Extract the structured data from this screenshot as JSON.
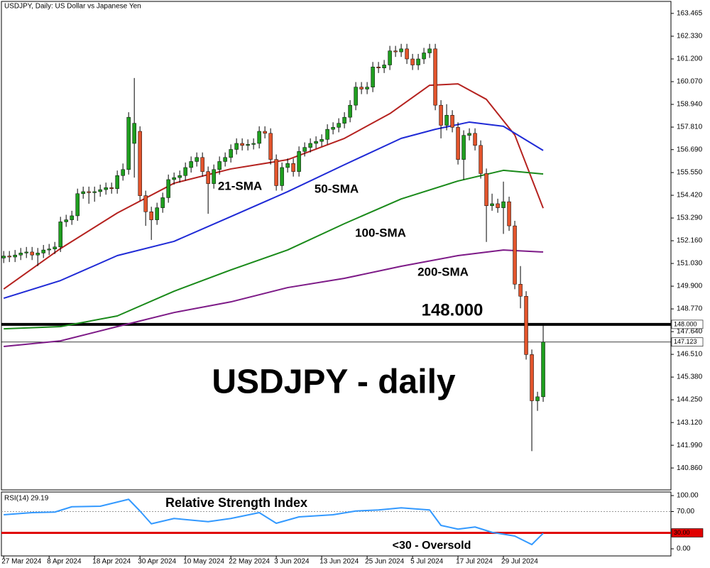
{
  "chart_data": [
    {
      "type": "candlestick",
      "title": "USDJPY, Daily:  US Dollar vs Japanese Yen",
      "categories": [
        "27 Mar 2024",
        null,
        null,
        null,
        null,
        null,
        null,
        null,
        "8 Apr 2024",
        null,
        null,
        null,
        null,
        null,
        null,
        null,
        "18 Apr 2024",
        null,
        null,
        null,
        null,
        null,
        null,
        null,
        "30 Apr 2024",
        null,
        null,
        null,
        null,
        null,
        null,
        null,
        "10 May 2024",
        null,
        null,
        null,
        null,
        null,
        null,
        null,
        "22 May 2024",
        null,
        null,
        null,
        null,
        null,
        null,
        null,
        "3 Jun 2024",
        null,
        null,
        null,
        null,
        null,
        null,
        null,
        "13 Jun 2024",
        null,
        null,
        null,
        null,
        null,
        null,
        null,
        "25 Jun 2024",
        null,
        null,
        null,
        null,
        null,
        null,
        null,
        "5 Jul 2024",
        null,
        null,
        null,
        null,
        null,
        null,
        null,
        "17 Jul 2024",
        null,
        null,
        null,
        null,
        null,
        null,
        null,
        "29 Jul 2024",
        null,
        null,
        null,
        null,
        null,
        null,
        null
      ],
      "open": [
        151.3,
        151.4,
        151.35,
        151.45,
        151.55,
        151.6,
        151.45,
        151.55,
        151.7,
        151.75,
        151.85,
        153.1,
        153.2,
        153.4,
        154.5,
        154.6,
        154.55,
        154.6,
        154.7,
        154.8,
        154.75,
        155.4,
        155.7,
        157.0,
        157.6,
        154.4,
        153.6,
        153.2,
        153.8,
        154.3,
        155.2,
        155.3,
        155.4,
        155.8,
        156.1,
        156.3,
        155.6,
        155.0,
        155.7,
        156.1,
        156.3,
        156.7,
        157.0,
        156.9,
        156.95,
        157.0,
        157.6,
        157.5,
        156.2,
        154.9,
        155.8,
        156.0,
        155.6,
        156.6,
        156.8,
        157.0,
        157.1,
        157.2,
        157.7,
        157.8,
        158.0,
        158.3,
        158.9,
        159.8,
        159.7,
        159.8,
        160.8,
        160.75,
        160.9,
        161.6,
        161.55,
        161.7,
        161.2,
        160.9,
        161.2,
        161.5,
        161.7,
        158.9,
        157.9,
        158.4,
        157.8,
        156.2,
        157.4,
        157.5,
        156.9,
        155.5,
        153.9,
        154.0,
        153.8,
        154.1,
        152.9,
        150.0,
        149.4,
        146.5,
        144.2,
        144.4
      ],
      "high": [
        151.65,
        151.65,
        151.7,
        151.8,
        151.85,
        151.85,
        151.8,
        151.95,
        152.0,
        152.1,
        153.35,
        153.45,
        153.65,
        154.75,
        154.85,
        154.85,
        154.85,
        154.95,
        155.05,
        155.05,
        155.65,
        156.0,
        158.55,
        160.25,
        157.85,
        154.65,
        153.85,
        154.05,
        154.55,
        155.45,
        155.55,
        155.65,
        156.05,
        156.35,
        156.55,
        156.55,
        155.85,
        155.95,
        156.35,
        156.55,
        156.95,
        157.25,
        157.25,
        157.2,
        157.25,
        157.85,
        157.85,
        157.75,
        156.45,
        156.05,
        156.25,
        156.25,
        156.85,
        157.05,
        157.25,
        157.35,
        157.45,
        157.95,
        158.05,
        158.25,
        158.55,
        159.15,
        160.05,
        160.05,
        160.05,
        161.05,
        161.05,
        161.15,
        161.85,
        161.85,
        161.95,
        161.95,
        161.45,
        161.45,
        161.75,
        161.95,
        161.95,
        159.15,
        158.95,
        158.65,
        158.05,
        157.65,
        157.75,
        157.75,
        157.15,
        155.75,
        154.5,
        154.25,
        155.1,
        154.35,
        153.15,
        150.9,
        149.65,
        146.75,
        144.65,
        147.96
      ],
      "low": [
        151.05,
        151.1,
        151.1,
        151.2,
        151.3,
        151.2,
        150.9,
        151.3,
        151.45,
        151.5,
        151.6,
        152.85,
        152.95,
        153.15,
        154.25,
        154.0,
        154.1,
        154.35,
        154.45,
        154.5,
        154.5,
        155.15,
        155.45,
        155.3,
        154.15,
        152.9,
        152.2,
        152.95,
        153.55,
        154.05,
        154.95,
        155.05,
        155.15,
        155.55,
        155.85,
        155.35,
        153.5,
        154.75,
        155.45,
        155.85,
        156.05,
        156.45,
        156.65,
        156.65,
        156.7,
        156.75,
        157.25,
        155.95,
        154.65,
        154.65,
        155.55,
        155.35,
        155.35,
        156.35,
        156.55,
        156.75,
        156.85,
        156.95,
        157.45,
        157.55,
        157.75,
        158.05,
        158.65,
        159.45,
        159.45,
        159.55,
        160.5,
        160.5,
        160.65,
        161.3,
        161.3,
        160.95,
        160.65,
        160.65,
        160.95,
        161.25,
        158.65,
        157.25,
        157.65,
        157.55,
        155.95,
        155.2,
        157.15,
        156.65,
        155.25,
        152.1,
        153.65,
        153.55,
        152.5,
        152.65,
        149.75,
        148.8,
        146.25,
        141.7,
        143.7,
        144.15
      ],
      "close": [
        151.4,
        151.35,
        151.45,
        151.55,
        151.6,
        151.45,
        151.55,
        151.7,
        151.75,
        151.85,
        153.1,
        153.2,
        153.4,
        154.5,
        154.6,
        154.55,
        154.6,
        154.7,
        154.8,
        154.75,
        155.4,
        155.7,
        158.3,
        158.0,
        154.4,
        153.6,
        153.2,
        153.8,
        154.3,
        155.2,
        155.3,
        155.4,
        155.8,
        156.1,
        156.3,
        155.6,
        155.0,
        155.7,
        156.1,
        156.3,
        156.7,
        157.0,
        156.9,
        156.95,
        157.0,
        157.6,
        157.5,
        156.2,
        154.9,
        155.8,
        156.0,
        155.6,
        156.6,
        156.8,
        157.0,
        157.1,
        157.2,
        157.7,
        157.8,
        158.0,
        158.3,
        158.9,
        159.8,
        159.7,
        159.8,
        160.8,
        160.75,
        160.9,
        161.6,
        161.55,
        161.7,
        161.2,
        160.9,
        161.2,
        161.5,
        161.7,
        158.9,
        157.9,
        158.4,
        157.8,
        156.2,
        157.4,
        157.5,
        156.9,
        155.5,
        153.9,
        154.0,
        153.8,
        154.1,
        152.9,
        150.0,
        149.4,
        146.5,
        144.2,
        144.4,
        147.12
      ],
      "up_color": "#1f9e1f",
      "down_color": "#e2542c",
      "xlim": [
        -0.4,
        117.5
      ],
      "ylim": [
        139.77,
        164.06
      ],
      "yticks": [
        {
          "value": 163.465,
          "label": "163.465"
        },
        {
          "value": 162.33,
          "label": "162.330"
        },
        {
          "value": 161.2,
          "label": "161.200"
        },
        {
          "value": 160.07,
          "label": "160.070"
        },
        {
          "value": 158.94,
          "label": "158.940"
        },
        {
          "value": 157.81,
          "label": "157.810"
        },
        {
          "value": 156.69,
          "label": "156.690"
        },
        {
          "value": 155.55,
          "label": "155.550"
        },
        {
          "value": 154.42,
          "label": "154.420"
        },
        {
          "value": 153.29,
          "label": "153.290"
        },
        {
          "value": 152.16,
          "label": "152.160"
        },
        {
          "value": 151.03,
          "label": "151.030"
        },
        {
          "value": 149.9,
          "label": "149.900"
        },
        {
          "value": 148.77,
          "label": "148.770"
        },
        {
          "value": 147.64,
          "label": "147.640"
        },
        {
          "value": 146.51,
          "label": "146.510"
        },
        {
          "value": 145.38,
          "label": "145.380"
        },
        {
          "value": 144.25,
          "label": "144.250"
        },
        {
          "value": 143.12,
          "label": "143.120"
        },
        {
          "value": 141.99,
          "label": "141.990"
        },
        {
          "value": 140.86,
          "label": "140.860"
        }
      ],
      "lines": [
        {
          "name": "21-SMA",
          "color": "#b5221f",
          "x": [
            0,
            10,
            20,
            30,
            40,
            50,
            60,
            68,
            75,
            80,
            85,
            90,
            95
          ],
          "values": [
            149.76,
            151.77,
            153.54,
            155.02,
            155.73,
            156.19,
            157.25,
            158.48,
            159.89,
            159.96,
            159.19,
            157.42,
            153.78
          ]
        },
        {
          "name": "50-SMA",
          "color": "#1f2ad6",
          "x": [
            0,
            10,
            20,
            30,
            40,
            50,
            60,
            70,
            76,
            82,
            88,
            95
          ],
          "values": [
            149.3,
            150.18,
            151.42,
            152.13,
            153.36,
            154.6,
            155.94,
            157.25,
            157.7,
            158.06,
            157.85,
            156.65
          ]
        },
        {
          "name": "100-SMA",
          "color": "#1a8a1a",
          "x": [
            0,
            10,
            20,
            30,
            40,
            50,
            60,
            70,
            80,
            88,
            95
          ],
          "values": [
            147.78,
            147.89,
            148.42,
            149.65,
            150.71,
            151.7,
            153.01,
            154.24,
            155.13,
            155.66,
            155.48
          ]
        },
        {
          "name": "200-SMA",
          "color": "#7d1a87",
          "x": [
            0,
            10,
            20,
            30,
            40,
            50,
            60,
            70,
            80,
            88,
            95
          ],
          "values": [
            146.9,
            147.18,
            147.89,
            148.59,
            149.12,
            149.83,
            150.29,
            150.89,
            151.42,
            151.7,
            151.6
          ]
        }
      ],
      "hlines": [
        {
          "value": 148,
          "label": "148.000",
          "color": "#000000"
        },
        {
          "value": 147.123,
          "label": "147.123",
          "color": "#000000"
        }
      ],
      "annotations": [
        "148.000",
        "USDJPY - daily"
      ]
    },
    {
      "type": "line",
      "title": "RSI(14) 29.19",
      "series": [
        {
          "name": "Relative Strength Index",
          "color": "#3399ff",
          "x": [
            0,
            5,
            9,
            12,
            17,
            22,
            24,
            26,
            30,
            36,
            40,
            45,
            48,
            52,
            58,
            62,
            66,
            70,
            75,
            77,
            80,
            83,
            86,
            90,
            93,
            95
          ],
          "values": [
            64,
            68,
            69,
            79,
            80,
            93,
            71,
            47,
            57,
            51,
            57,
            68,
            48,
            60,
            64,
            71,
            73,
            77,
            73,
            44,
            37,
            41,
            31,
            24,
            8,
            29.19
          ]
        }
      ],
      "xlim": [
        -0.4,
        117.5
      ],
      "ylim": [
        -13.33,
        106.67
      ],
      "yticks": [
        {
          "value": 100,
          "label": "100.00"
        },
        {
          "value": 70,
          "label": "70.00"
        },
        {
          "value": 0,
          "label": "0.00"
        }
      ],
      "hlines": [
        {
          "value": 30,
          "label": "30.00",
          "color": "#e00000"
        }
      ],
      "annotations": [
        "<30 - Oversold"
      ]
    }
  ]
}
